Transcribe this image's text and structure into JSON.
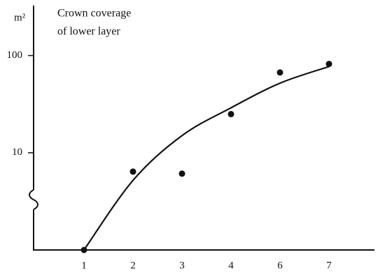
{
  "chart_data": {
    "type": "scatter",
    "annotation": [
      "Crown coverage",
      "of lower layer"
    ],
    "ylabel": "m²",
    "categories": [
      "1",
      "2",
      "3",
      "4",
      "6",
      "7"
    ],
    "series": [
      {
        "color": "#111111",
        "marker": "dot",
        "values": [
          1,
          6.4,
          6.1,
          25,
          67,
          82
        ]
      },
      {
        "color": "#111111",
        "marker": "line",
        "values": [
          1,
          5.2,
          15,
          29,
          52,
          77
        ]
      }
    ],
    "ylim": [
      1,
      316
    ],
    "yticks": [
      10,
      100
    ],
    "log_y": true,
    "grid": false
  }
}
